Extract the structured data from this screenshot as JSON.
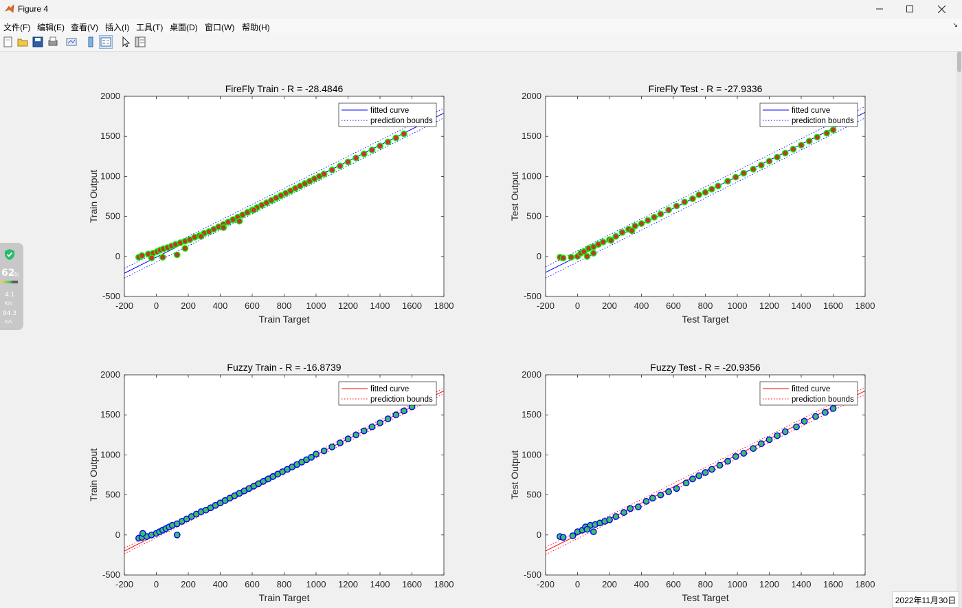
{
  "window": {
    "title": "Figure 4",
    "controls": {
      "minimize": "minimize-icon",
      "maximize": "maximize-icon",
      "close": "close-icon"
    }
  },
  "menu": {
    "items": [
      "文件(F)",
      "编辑(E)",
      "查看(V)",
      "插入(I)",
      "工具(T)",
      "桌面(D)",
      "窗口(W)",
      "帮助(H)"
    ]
  },
  "toolbar": {
    "icons": [
      "new-figure-icon",
      "open-file-icon",
      "save-icon",
      "print-icon",
      "link-plot-icon",
      "insert-colorbar-icon",
      "insert-legend-icon",
      "pointer-icon",
      "property-editor-icon"
    ]
  },
  "widget": {
    "percent": "62",
    "percent_unit": "%",
    "up": "4.1",
    "up_unit": "K/s",
    "down": "94.3",
    "down_unit": "K/s"
  },
  "taskbar": {
    "date": "2022年11月30日"
  },
  "colors": {
    "red_curve": "#ff0000",
    "blue_curve": "#0000ff",
    "green_edge": "#00ff00",
    "red_marker": "#c0392b",
    "blue_edge": "#0000ff",
    "green_marker": "#3fbf5f"
  },
  "chart_data": [
    {
      "type": "scatter",
      "title": "FireFly Train - R =  -28.4846",
      "xlabel": "Train Target",
      "ylabel": "Train Output",
      "xlim": [
        -200,
        1800
      ],
      "ylim": [
        -500,
        2000
      ],
      "xticks": [
        -200,
        0,
        200,
        400,
        600,
        800,
        1000,
        1200,
        1400,
        1600,
        1800
      ],
      "yticks": [
        -500,
        0,
        500,
        1000,
        1500,
        2000
      ],
      "legend": {
        "placement": "top-right",
        "entries": [
          "fitted curve",
          "prediction bounds"
        ]
      },
      "fit": {
        "slope": 1.0,
        "intercept": -10,
        "band": 60
      },
      "marker_face": "red",
      "marker_edge": "green",
      "line_color": "blue",
      "x": [
        -110,
        -90,
        -50,
        -20,
        5,
        25,
        45,
        70,
        95,
        120,
        150,
        180,
        210,
        240,
        270,
        300,
        330,
        360,
        390,
        420,
        450,
        480,
        510,
        540,
        570,
        600,
        630,
        660,
        690,
        720,
        750,
        780,
        810,
        840,
        870,
        900,
        930,
        960,
        990,
        1020,
        1050,
        1100,
        1150,
        1200,
        1250,
        1300,
        1350,
        1400,
        1450,
        1500,
        1550,
        -30,
        40,
        130,
        180,
        280,
        420,
        520,
        610,
        780
      ],
      "y": [
        -10,
        10,
        30,
        40,
        60,
        80,
        95,
        110,
        130,
        150,
        170,
        190,
        210,
        240,
        260,
        290,
        310,
        340,
        370,
        400,
        430,
        460,
        490,
        520,
        550,
        580,
        610,
        640,
        670,
        700,
        730,
        760,
        790,
        820,
        850,
        880,
        910,
        940,
        970,
        1000,
        1030,
        1080,
        1130,
        1180,
        1230,
        1280,
        1330,
        1380,
        1430,
        1480,
        1530,
        -20,
        -10,
        20,
        100,
        250,
        360,
        440,
        580,
        760
      ]
    },
    {
      "type": "scatter",
      "title": "FireFly Test - R =  -27.9336",
      "xlabel": "Test Target",
      "ylabel": "Test Output",
      "xlim": [
        -200,
        1800
      ],
      "ylim": [
        -500,
        2000
      ],
      "xticks": [
        -200,
        0,
        200,
        400,
        600,
        800,
        1000,
        1200,
        1400,
        1600,
        1800
      ],
      "yticks": [
        -500,
        0,
        500,
        1000,
        1500,
        2000
      ],
      "legend": {
        "placement": "top-right",
        "entries": [
          "fitted curve",
          "prediction bounds"
        ]
      },
      "fit": {
        "slope": 1.0,
        "intercept": 0,
        "band": 70
      },
      "marker_face": "red",
      "marker_edge": "green",
      "line_color": "blue",
      "x": [
        -110,
        -90,
        -40,
        0,
        20,
        40,
        70,
        100,
        130,
        160,
        200,
        240,
        280,
        320,
        360,
        400,
        440,
        480,
        520,
        570,
        620,
        670,
        720,
        760,
        800,
        840,
        880,
        940,
        990,
        1040,
        1100,
        1150,
        1200,
        1250,
        1300,
        1350,
        1400,
        1450,
        1500,
        1560,
        1600,
        60,
        100,
        210,
        340
      ],
      "y": [
        -10,
        -20,
        -10,
        0,
        40,
        60,
        100,
        120,
        150,
        180,
        210,
        250,
        300,
        340,
        380,
        410,
        450,
        490,
        530,
        580,
        630,
        680,
        720,
        770,
        800,
        840,
        880,
        940,
        990,
        1040,
        1090,
        1140,
        1190,
        1240,
        1290,
        1340,
        1390,
        1440,
        1490,
        1540,
        1580,
        0,
        40,
        200,
        320
      ]
    },
    {
      "type": "scatter",
      "title": "Fuzzy Train - R =  -16.8739",
      "xlabel": "Train Target",
      "ylabel": "Train Output",
      "xlim": [
        -200,
        1800
      ],
      "ylim": [
        -500,
        2000
      ],
      "xticks": [
        -200,
        0,
        200,
        400,
        600,
        800,
        1000,
        1200,
        1400,
        1600,
        1800
      ],
      "yticks": [
        -500,
        0,
        500,
        1000,
        1500,
        2000
      ],
      "legend": {
        "placement": "top-right",
        "entries": [
          "fitted curve",
          "prediction bounds"
        ]
      },
      "fit": {
        "slope": 1.0,
        "intercept": 0,
        "band": 35
      },
      "marker_face": "green",
      "marker_edge": "blue",
      "line_color": "red",
      "x": [
        -110,
        -90,
        -60,
        -30,
        0,
        20,
        40,
        60,
        80,
        100,
        130,
        160,
        190,
        220,
        250,
        280,
        310,
        340,
        370,
        400,
        430,
        460,
        490,
        520,
        550,
        580,
        610,
        640,
        670,
        700,
        730,
        760,
        790,
        820,
        850,
        880,
        910,
        940,
        970,
        1000,
        1050,
        1100,
        1150,
        1200,
        1250,
        1300,
        1350,
        1400,
        1450,
        1500,
        1550,
        1600,
        -85,
        130
      ],
      "y": [
        -40,
        -30,
        -20,
        0,
        20,
        40,
        60,
        80,
        100,
        120,
        140,
        170,
        200,
        230,
        260,
        290,
        310,
        340,
        370,
        400,
        430,
        460,
        490,
        520,
        550,
        580,
        610,
        640,
        670,
        700,
        730,
        760,
        790,
        820,
        850,
        880,
        910,
        940,
        970,
        1010,
        1050,
        1100,
        1150,
        1200,
        1250,
        1300,
        1350,
        1400,
        1450,
        1500,
        1550,
        1600,
        20,
        0
      ]
    },
    {
      "type": "scatter",
      "title": "Fuzzy Test - R =  -20.9356",
      "xlabel": "Test Target",
      "ylabel": "Test Output",
      "xlim": [
        -200,
        1800
      ],
      "ylim": [
        -500,
        2000
      ],
      "xticks": [
        -200,
        0,
        200,
        400,
        600,
        800,
        1000,
        1200,
        1400,
        1600,
        1800
      ],
      "yticks": [
        -500,
        0,
        500,
        1000,
        1500,
        2000
      ],
      "legend": {
        "placement": "top-right",
        "entries": [
          "fitted curve",
          "prediction bounds"
        ]
      },
      "fit": {
        "slope": 1.0,
        "intercept": 0,
        "band": 45
      },
      "marker_face": "green",
      "marker_edge": "blue",
      "line_color": "red",
      "x": [
        -110,
        -90,
        -30,
        0,
        30,
        50,
        80,
        110,
        140,
        170,
        200,
        240,
        290,
        330,
        380,
        430,
        470,
        520,
        570,
        620,
        680,
        720,
        760,
        800,
        840,
        890,
        940,
        990,
        1040,
        1100,
        1150,
        1200,
        1250,
        1300,
        1370,
        1420,
        1490,
        1550,
        1600,
        60,
        100
      ],
      "y": [
        -20,
        -30,
        -10,
        40,
        60,
        100,
        120,
        130,
        150,
        170,
        190,
        230,
        280,
        330,
        350,
        420,
        460,
        500,
        540,
        580,
        650,
        700,
        740,
        780,
        820,
        870,
        920,
        980,
        1020,
        1080,
        1140,
        1190,
        1240,
        1290,
        1350,
        1420,
        1480,
        1530,
        1580,
        70,
        40
      ]
    }
  ]
}
